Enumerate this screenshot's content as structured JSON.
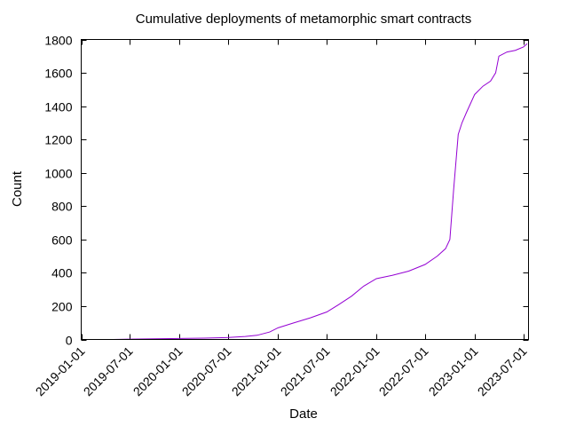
{
  "chart_data": {
    "type": "line",
    "title": "Cumulative deployments of metamorphic smart contracts",
    "xlabel": "Date",
    "ylabel": "Count",
    "xlim": [
      "2019-01-01",
      "2023-07-20"
    ],
    "ylim": [
      0,
      1800
    ],
    "yticks": [
      0,
      200,
      400,
      600,
      800,
      1000,
      1200,
      1400,
      1600,
      1800
    ],
    "xticks": [
      "2019-01-01",
      "2019-07-01",
      "2020-01-01",
      "2020-07-01",
      "2021-01-01",
      "2021-07-01",
      "2022-01-01",
      "2022-07-01",
      "2023-01-01",
      "2023-07-01"
    ],
    "grid": false,
    "line_color": "#9400d3",
    "series": [
      {
        "x": [
          "2019-05-01",
          "2019-07-01",
          "2019-10-01",
          "2020-01-01",
          "2020-04-01",
          "2020-07-01",
          "2020-09-01",
          "2020-10-15",
          "2020-12-01",
          "2021-01-01",
          "2021-03-01",
          "2021-05-01",
          "2021-07-01",
          "2021-08-15",
          "2021-10-01",
          "2021-11-15",
          "2022-01-01",
          "2022-03-01",
          "2022-05-01",
          "2022-07-01",
          "2022-08-15",
          "2022-09-15",
          "2022-10-01",
          "2022-10-15",
          "2022-11-01",
          "2022-11-15",
          "2022-12-01",
          "2023-01-01",
          "2023-02-01",
          "2023-03-01",
          "2023-03-20",
          "2023-04-01",
          "2023-05-01",
          "2023-06-01",
          "2023-07-01",
          "2023-07-15"
        ],
        "y": [
          0,
          2,
          4,
          6,
          8,
          12,
          18,
          25,
          45,
          70,
          100,
          130,
          165,
          210,
          260,
          320,
          365,
          385,
          410,
          450,
          500,
          545,
          600,
          900,
          1230,
          1300,
          1360,
          1470,
          1520,
          1550,
          1600,
          1700,
          1725,
          1735,
          1755,
          1775
        ]
      }
    ]
  }
}
